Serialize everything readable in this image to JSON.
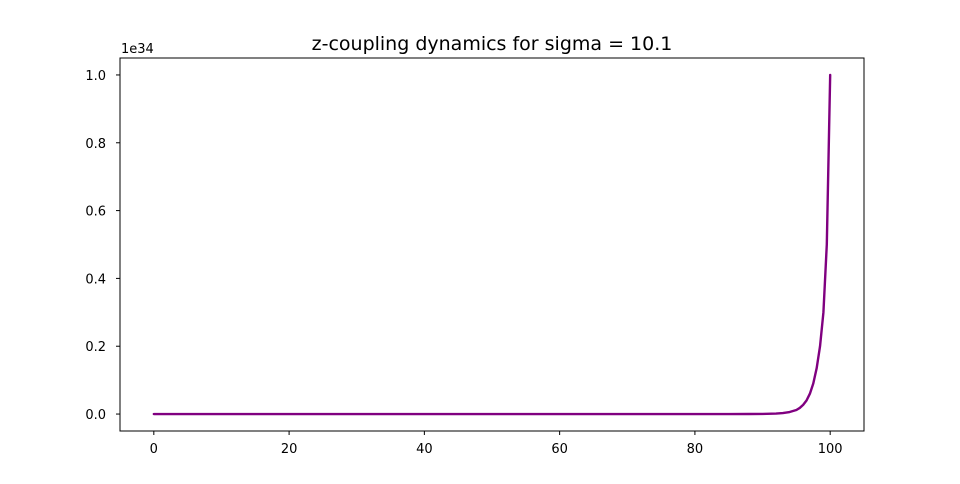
{
  "chart_data": {
    "type": "line",
    "title": "z-coupling dynamics for sigma = 10.1",
    "xlabel": "",
    "ylabel": "",
    "y_offset_label": "1e34",
    "xlim": [
      -5,
      105
    ],
    "ylim": [
      -0.05,
      1.05
    ],
    "x_ticks": [
      0,
      20,
      40,
      60,
      80,
      100
    ],
    "x_tick_labels": [
      "0",
      "20",
      "40",
      "60",
      "80",
      "100"
    ],
    "y_ticks": [
      0.0,
      0.2,
      0.4,
      0.6,
      0.8,
      1.0
    ],
    "y_tick_labels": [
      "0.0",
      "0.2",
      "0.4",
      "0.6",
      "0.8",
      "1.0"
    ],
    "grid": false,
    "legend": "none",
    "series": [
      {
        "color": "#800080",
        "x": [
          0,
          10,
          20,
          30,
          40,
          50,
          60,
          70,
          80,
          85,
          88,
          90,
          92,
          93,
          94,
          95,
          95.5,
          96,
          96.5,
          97,
          97.5,
          98,
          98.5,
          99,
          99.5,
          100
        ],
        "y": [
          0,
          0,
          0,
          0,
          0,
          0,
          0,
          0,
          0,
          1e-05,
          0.0001,
          0.0004,
          0.0015,
          0.003,
          0.006,
          0.012,
          0.018,
          0.027,
          0.04,
          0.06,
          0.09,
          0.135,
          0.2,
          0.3,
          0.5,
          1.0
        ]
      }
    ]
  }
}
